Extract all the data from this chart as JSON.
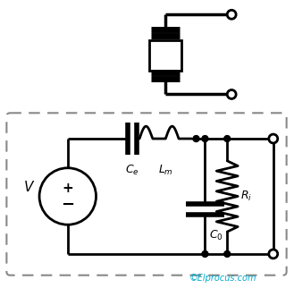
{
  "bg_color": "#ffffff",
  "line_color": "#000000",
  "copyright_color": "#00aacc",
  "copyright_text": "©Elprocus.com",
  "figsize": [
    3.29,
    3.22
  ],
  "dpi": 100,
  "lw": 2.0
}
